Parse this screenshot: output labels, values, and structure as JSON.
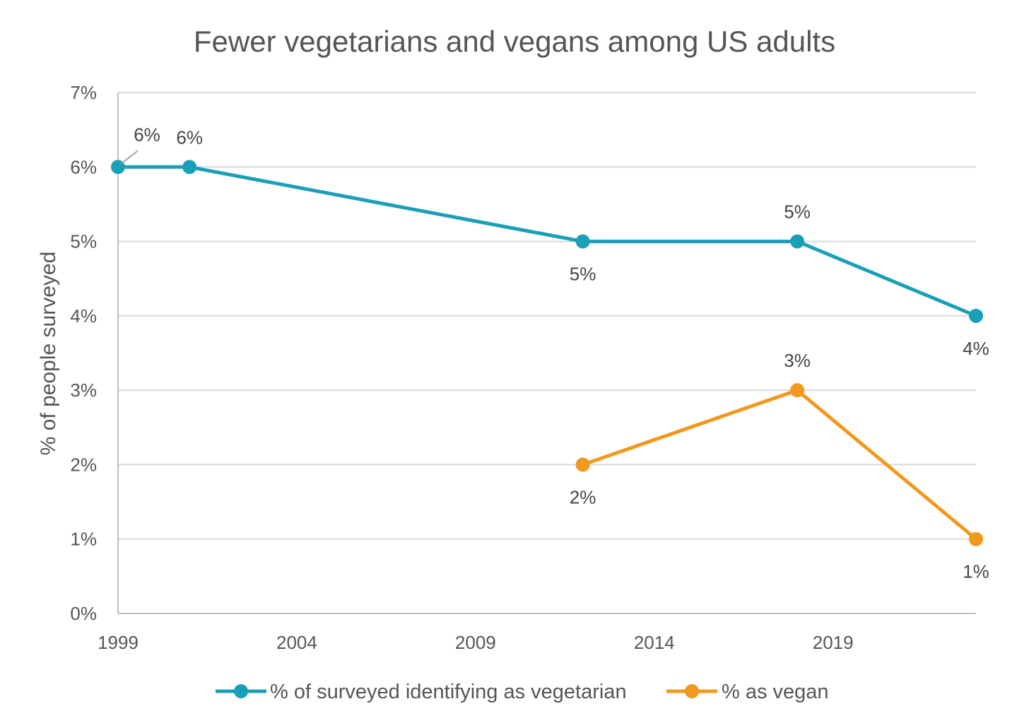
{
  "chart_data": {
    "type": "line",
    "title": "Fewer vegetarians and vegans among US adults",
    "xlabel": "",
    "ylabel": "% of people surveyed",
    "xlim": [
      1999,
      2023
    ],
    "ylim": [
      0,
      7
    ],
    "x_ticks": [
      "1999",
      "2004",
      "2009",
      "2014",
      "2019"
    ],
    "y_ticks": [
      "0%",
      "1%",
      "2%",
      "3%",
      "4%",
      "5%",
      "6%",
      "7%"
    ],
    "grid": true,
    "legend_position": "bottom",
    "series": [
      {
        "name": "% of surveyed identifying as vegetarian",
        "color": "#1a9fb8",
        "x": [
          1999,
          2001,
          2012,
          2018,
          2023
        ],
        "y": [
          6,
          6,
          5,
          5,
          4
        ],
        "labels": [
          "6%",
          "6%",
          "5%",
          "5%",
          "4%"
        ]
      },
      {
        "name": "% as vegan",
        "color": "#f0991c",
        "x": [
          2012,
          2018,
          2023
        ],
        "y": [
          2,
          3,
          1
        ],
        "labels": [
          "2%",
          "3%",
          "1%"
        ]
      }
    ]
  }
}
